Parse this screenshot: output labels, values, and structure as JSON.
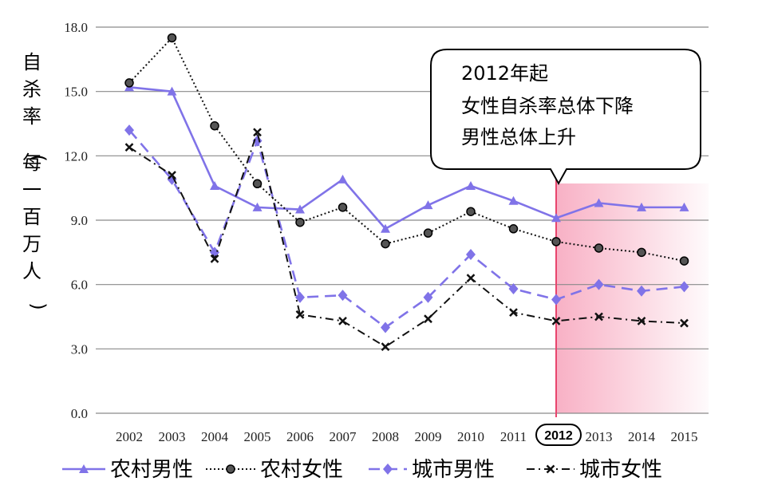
{
  "chart_data": {
    "type": "line",
    "ylabel": "自杀率（每一百万人）",
    "ylim": [
      0,
      18
    ],
    "y_ticks": [
      "0.0",
      "3.0",
      "6.0",
      "9.0",
      "12.0",
      "15.0",
      "18.0"
    ],
    "categories": [
      "2002",
      "2003",
      "2004",
      "2005",
      "2006",
      "2007",
      "2008",
      "2009",
      "2010",
      "2011",
      "2012",
      "2013",
      "2014",
      "2015"
    ],
    "grid": true,
    "legend_position": "bottom",
    "series": [
      {
        "name": "农村男性",
        "color": "#8073e8",
        "style": "solid",
        "marker": "triangle",
        "values": [
          15.2,
          15.0,
          10.6,
          9.6,
          9.5,
          10.9,
          8.6,
          9.7,
          10.6,
          9.9,
          9.1,
          9.8,
          9.6,
          9.6
        ]
      },
      {
        "name": "农村女性",
        "color": "#111111",
        "style": "dotted",
        "marker": "circle",
        "values": [
          15.4,
          17.5,
          13.4,
          10.7,
          8.9,
          9.6,
          7.9,
          8.4,
          9.4,
          8.6,
          8.0,
          7.7,
          7.5,
          7.1
        ]
      },
      {
        "name": "城市男性",
        "color": "#8073e8",
        "style": "dashed",
        "marker": "diamond",
        "values": [
          13.2,
          10.9,
          7.5,
          12.7,
          5.4,
          5.5,
          4.0,
          5.4,
          7.4,
          5.8,
          5.3,
          6.0,
          5.7,
          5.9
        ]
      },
      {
        "name": "城市女性",
        "color": "#111111",
        "style": "dashdot",
        "marker": "x",
        "values": [
          12.4,
          11.1,
          7.2,
          13.1,
          4.6,
          4.3,
          3.1,
          4.4,
          6.3,
          4.7,
          4.3,
          4.5,
          4.3,
          4.2
        ]
      }
    ],
    "highlight": {
      "year": "2012",
      "label": "2012",
      "shade_color": "#f7a3bb",
      "line_color": "#e8456d"
    },
    "annotation": {
      "lines": [
        "2012年起",
        "女性自杀率总体下降",
        "男性总体上升"
      ]
    }
  }
}
